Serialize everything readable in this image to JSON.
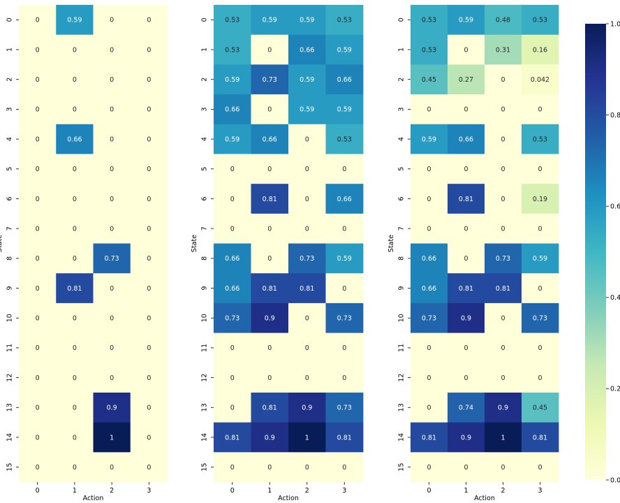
{
  "chart_data": [
    {
      "type": "heatmap",
      "xlabel": "Action",
      "ylabel": "State",
      "x_ticks": [
        "0",
        "1",
        "2",
        "3"
      ],
      "y_ticks": [
        "0",
        "1",
        "2",
        "3",
        "4",
        "5",
        "6",
        "7",
        "8",
        "9",
        "10",
        "11",
        "12",
        "13",
        "14",
        "15"
      ],
      "values": [
        [
          0,
          0.59,
          0,
          0
        ],
        [
          0,
          0,
          0,
          0
        ],
        [
          0,
          0,
          0,
          0
        ],
        [
          0,
          0,
          0,
          0
        ],
        [
          0,
          0.66,
          0,
          0
        ],
        [
          0,
          0,
          0,
          0
        ],
        [
          0,
          0,
          0,
          0
        ],
        [
          0,
          0,
          0,
          0
        ],
        [
          0,
          0,
          0.73,
          0
        ],
        [
          0,
          0.81,
          0,
          0
        ],
        [
          0,
          0,
          0,
          0
        ],
        [
          0,
          0,
          0,
          0
        ],
        [
          0,
          0,
          0,
          0
        ],
        [
          0,
          0,
          0.9,
          0
        ],
        [
          0,
          0,
          1,
          0
        ],
        [
          0,
          0,
          0,
          0
        ]
      ],
      "labels": [
        [
          "0",
          "0.59",
          "0",
          "0"
        ],
        [
          "0",
          "0",
          "0",
          "0"
        ],
        [
          "0",
          "0",
          "0",
          "0"
        ],
        [
          "0",
          "0",
          "0",
          "0"
        ],
        [
          "0",
          "0.66",
          "0",
          "0"
        ],
        [
          "0",
          "0",
          "0",
          "0"
        ],
        [
          "0",
          "0",
          "0",
          "0"
        ],
        [
          "0",
          "0",
          "0",
          "0"
        ],
        [
          "0",
          "0",
          "0.73",
          "0"
        ],
        [
          "0",
          "0.81",
          "0",
          "0"
        ],
        [
          "0",
          "0",
          "0",
          "0"
        ],
        [
          "0",
          "0",
          "0",
          "0"
        ],
        [
          "0",
          "0",
          "0",
          "0"
        ],
        [
          "0",
          "0",
          "0.9",
          "0"
        ],
        [
          "0",
          "0",
          "1",
          "0"
        ],
        [
          "0",
          "0",
          "0",
          "0"
        ]
      ]
    },
    {
      "type": "heatmap",
      "xlabel": "Action",
      "ylabel": "State",
      "x_ticks": [
        "0",
        "1",
        "2",
        "3"
      ],
      "y_ticks": [
        "0",
        "1",
        "2",
        "3",
        "4",
        "5",
        "6",
        "7",
        "8",
        "9",
        "10",
        "11",
        "12",
        "13",
        "14",
        "15"
      ],
      "values": [
        [
          0.53,
          0.59,
          0.59,
          0.53
        ],
        [
          0.53,
          0,
          0.66,
          0.59
        ],
        [
          0.59,
          0.73,
          0.59,
          0.66
        ],
        [
          0.66,
          0,
          0.59,
          0.59
        ],
        [
          0.59,
          0.66,
          0,
          0.53
        ],
        [
          0,
          0,
          0,
          0
        ],
        [
          0,
          0.81,
          0,
          0.66
        ],
        [
          0,
          0,
          0,
          0
        ],
        [
          0.66,
          0,
          0.73,
          0.59
        ],
        [
          0.66,
          0.81,
          0.81,
          0
        ],
        [
          0.73,
          0.9,
          0,
          0.73
        ],
        [
          0,
          0,
          0,
          0
        ],
        [
          0,
          0,
          0,
          0
        ],
        [
          0,
          0.81,
          0.9,
          0.73
        ],
        [
          0.81,
          0.9,
          1,
          0.81
        ],
        [
          0,
          0,
          0,
          0
        ]
      ],
      "labels": [
        [
          "0.53",
          "0.59",
          "0.59",
          "0.53"
        ],
        [
          "0.53",
          "0",
          "0.66",
          "0.59"
        ],
        [
          "0.59",
          "0.73",
          "0.59",
          "0.66"
        ],
        [
          "0.66",
          "0",
          "0.59",
          "0.59"
        ],
        [
          "0.59",
          "0.66",
          "0",
          "0.53"
        ],
        [
          "0",
          "0",
          "0",
          "0"
        ],
        [
          "0",
          "0.81",
          "0",
          "0.66"
        ],
        [
          "0",
          "0",
          "0",
          "0"
        ],
        [
          "0.66",
          "0",
          "0.73",
          "0.59"
        ],
        [
          "0.66",
          "0.81",
          "0.81",
          "0"
        ],
        [
          "0.73",
          "0.9",
          "0",
          "0.73"
        ],
        [
          "0",
          "0",
          "0",
          "0"
        ],
        [
          "0",
          "0",
          "0",
          "0"
        ],
        [
          "0",
          "0.81",
          "0.9",
          "0.73"
        ],
        [
          "0.81",
          "0.9",
          "1",
          "0.81"
        ],
        [
          "0",
          "0",
          "0",
          "0"
        ]
      ]
    },
    {
      "type": "heatmap",
      "xlabel": "Action",
      "ylabel": "State",
      "x_ticks": [
        "0",
        "1",
        "2",
        "3"
      ],
      "y_ticks": [
        "0",
        "1",
        "2",
        "3",
        "4",
        "5",
        "6",
        "7",
        "8",
        "9",
        "10",
        "11",
        "12",
        "13",
        "14",
        "15"
      ],
      "values": [
        [
          0.53,
          0.59,
          0.48,
          0.53
        ],
        [
          0.53,
          0,
          0.31,
          0.16
        ],
        [
          0.45,
          0.27,
          0,
          0.042
        ],
        [
          0,
          0,
          0,
          0
        ],
        [
          0.59,
          0.66,
          0,
          0.53
        ],
        [
          0,
          0,
          0,
          0
        ],
        [
          0,
          0.81,
          0,
          0.19
        ],
        [
          0,
          0,
          0,
          0
        ],
        [
          0.66,
          0,
          0.73,
          0.59
        ],
        [
          0.66,
          0.81,
          0.81,
          0
        ],
        [
          0.73,
          0.9,
          0,
          0.73
        ],
        [
          0,
          0,
          0,
          0
        ],
        [
          0,
          0,
          0,
          0
        ],
        [
          0,
          0.74,
          0.9,
          0.45
        ],
        [
          0.81,
          0.9,
          1,
          0.81
        ],
        [
          0,
          0,
          0,
          0
        ]
      ],
      "labels": [
        [
          "0.53",
          "0.59",
          "0.48",
          "0.53"
        ],
        [
          "0.53",
          "0",
          "0.31",
          "0.16"
        ],
        [
          "0.45",
          "0.27",
          "0",
          "0.042"
        ],
        [
          "0",
          "0",
          "0",
          "0"
        ],
        [
          "0.59",
          "0.66",
          "0",
          "0.53"
        ],
        [
          "0",
          "0",
          "0",
          "0"
        ],
        [
          "0",
          "0.81",
          "0",
          "0.19"
        ],
        [
          "0",
          "0",
          "0",
          "0"
        ],
        [
          "0.66",
          "0",
          "0.73",
          "0.59"
        ],
        [
          "0.66",
          "0.81",
          "0.81",
          "0"
        ],
        [
          "0.73",
          "0.9",
          "0",
          "0.73"
        ],
        [
          "0",
          "0",
          "0",
          "0"
        ],
        [
          "0",
          "0",
          "0",
          "0"
        ],
        [
          "0",
          "0.74",
          "0.9",
          "0.45"
        ],
        [
          "0.81",
          "0.9",
          "1",
          "0.81"
        ],
        [
          "0",
          "0",
          "0",
          "0"
        ]
      ]
    }
  ],
  "colorbar": {
    "range": [
      0,
      1
    ],
    "ticks": [
      "0.0",
      "0.2",
      "0.4",
      "0.6",
      "0.8",
      "1.0"
    ],
    "colormap": "YlGnBu",
    "stops": [
      "#ffffd9",
      "#edf8b1",
      "#c7e9b4",
      "#7fcdbb",
      "#41b6c4",
      "#1d91c0",
      "#225ea8",
      "#253494",
      "#081d58"
    ]
  }
}
